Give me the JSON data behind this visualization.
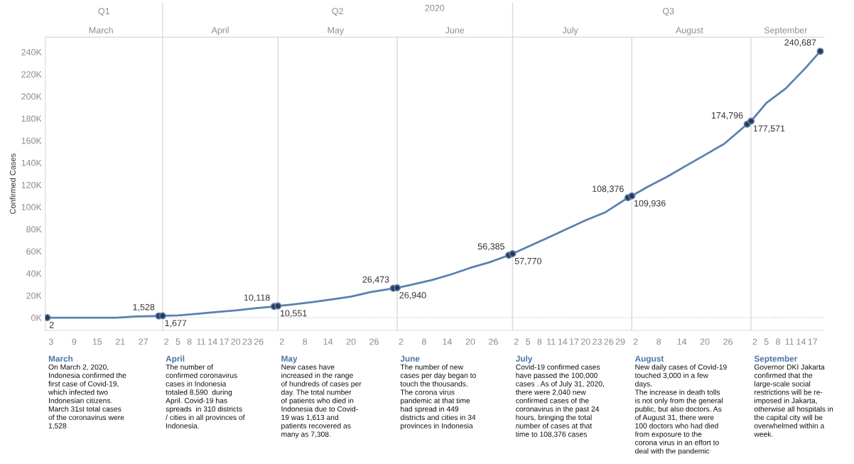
{
  "chart_data": {
    "type": "line",
    "ylabel": "Confirmed Cases",
    "x2label": "2020",
    "x2lim": [
      "2020-03-01T12:00",
      "2020-09-20"
    ],
    "xlim": [
      "2020-03-01T12:00",
      "2020-09-20"
    ],
    "ylim": [
      -11500,
      253500
    ],
    "yticks": [
      {
        "value": 0,
        "label": "0K"
      },
      {
        "value": 20000,
        "label": "20K"
      },
      {
        "value": 40000,
        "label": "40K"
      },
      {
        "value": 60000,
        "label": "60K"
      },
      {
        "value": 80000,
        "label": "80K"
      },
      {
        "value": 100000,
        "label": "100K"
      },
      {
        "value": 120000,
        "label": "120K"
      },
      {
        "value": 140000,
        "label": "140K"
      },
      {
        "value": 160000,
        "label": "160K"
      },
      {
        "value": 180000,
        "label": "180K"
      },
      {
        "value": 200000,
        "label": "200K"
      },
      {
        "value": 220000,
        "label": "220K"
      },
      {
        "value": 240000,
        "label": "240K"
      }
    ],
    "xticks": [
      {
        "value": "2020-03-03",
        "label": "3"
      },
      {
        "value": "2020-03-09",
        "label": "9"
      },
      {
        "value": "2020-03-15",
        "label": "15"
      },
      {
        "value": "2020-03-21",
        "label": "21"
      },
      {
        "value": "2020-03-27",
        "label": "27"
      },
      {
        "value": "2020-04-02",
        "label": "2"
      },
      {
        "value": "2020-04-05",
        "label": "5"
      },
      {
        "value": "2020-04-08",
        "label": "8"
      },
      {
        "value": "2020-04-11",
        "label": "11"
      },
      {
        "value": "2020-04-14",
        "label": "14"
      },
      {
        "value": "2020-04-17",
        "label": "17"
      },
      {
        "value": "2020-04-20",
        "label": "20"
      },
      {
        "value": "2020-04-23",
        "label": "23"
      },
      {
        "value": "2020-04-26",
        "label": "26"
      },
      {
        "value": "2020-05-02",
        "label": "2"
      },
      {
        "value": "2020-05-08",
        "label": "8"
      },
      {
        "value": "2020-05-14",
        "label": "14"
      },
      {
        "value": "2020-05-20",
        "label": "20"
      },
      {
        "value": "2020-05-26",
        "label": "26"
      },
      {
        "value": "2020-06-02",
        "label": "2"
      },
      {
        "value": "2020-06-08",
        "label": "8"
      },
      {
        "value": "2020-06-14",
        "label": "14"
      },
      {
        "value": "2020-06-20",
        "label": "20"
      },
      {
        "value": "2020-06-26",
        "label": "26"
      },
      {
        "value": "2020-07-02",
        "label": "2"
      },
      {
        "value": "2020-07-05",
        "label": "5"
      },
      {
        "value": "2020-07-08",
        "label": "8"
      },
      {
        "value": "2020-07-11",
        "label": "11"
      },
      {
        "value": "2020-07-14",
        "label": "14"
      },
      {
        "value": "2020-07-17",
        "label": "17"
      },
      {
        "value": "2020-07-20",
        "label": "20"
      },
      {
        "value": "2020-07-23",
        "label": "23"
      },
      {
        "value": "2020-07-26",
        "label": "26"
      },
      {
        "value": "2020-07-29",
        "label": "29"
      },
      {
        "value": "2020-08-02",
        "label": "2"
      },
      {
        "value": "2020-08-08",
        "label": "8"
      },
      {
        "value": "2020-08-14",
        "label": "14"
      },
      {
        "value": "2020-08-20",
        "label": "20"
      },
      {
        "value": "2020-08-26",
        "label": "26"
      },
      {
        "value": "2020-09-02",
        "label": "2"
      },
      {
        "value": "2020-09-05",
        "label": "5"
      },
      {
        "value": "2020-09-08",
        "label": "8"
      },
      {
        "value": "2020-09-11",
        "label": "11"
      },
      {
        "value": "2020-09-14",
        "label": "14"
      },
      {
        "value": "2020-09-17",
        "label": "17"
      }
    ],
    "x2ticks": [
      {
        "value": "2020-03-16",
        "label": "March"
      },
      {
        "value": "2020-04-16",
        "label": "April"
      },
      {
        "value": "2020-05-16",
        "label": "May"
      },
      {
        "value": "2020-06-16",
        "label": "June"
      },
      {
        "value": "2020-07-16",
        "label": "July"
      },
      {
        "value": "2020-08-16",
        "label": "August"
      },
      {
        "value": "2020-09-10",
        "label": "September"
      }
    ],
    "ref_lines": [
      {
        "axis": "x",
        "value": "2020-04-01",
        "label": null,
        "color": "#d9d9d9",
        "line_style": "solid"
      },
      {
        "axis": "x",
        "value": "2020-05-01",
        "label": null,
        "color": "#d9d9d9",
        "line_style": "solid"
      },
      {
        "axis": "x",
        "value": "2020-06-01",
        "label": null,
        "color": "#d9d9d9",
        "line_style": "solid"
      },
      {
        "axis": "x",
        "value": "2020-07-01",
        "label": null,
        "color": "#d9d9d9",
        "line_style": "solid"
      },
      {
        "axis": "x",
        "value": "2020-08-01",
        "label": null,
        "color": "#d9d9d9",
        "line_style": "solid"
      },
      {
        "axis": "x",
        "value": "2020-09-01",
        "label": null,
        "color": "#d9d9d9",
        "line_style": "solid"
      },
      {
        "axis": "y",
        "value": 0,
        "label": null,
        "color": "#d0d0d0",
        "line_style": "dotted"
      }
    ],
    "grid": false,
    "series": [
      {
        "color": "#5b80b2",
        "line_style": "solid",
        "marker": "none",
        "x": [
          "2020-03-02",
          "2020-03-10",
          "2020-03-15",
          "2020-03-20",
          "2020-03-25",
          "2020-03-31",
          "2020-04-01",
          "2020-04-05",
          "2020-04-10",
          "2020-04-15",
          "2020-04-20",
          "2020-04-25",
          "2020-04-30",
          "2020-05-01",
          "2020-05-05",
          "2020-05-10",
          "2020-05-15",
          "2020-05-20",
          "2020-05-25",
          "2020-05-31",
          "2020-06-01",
          "2020-06-05",
          "2020-06-10",
          "2020-06-15",
          "2020-06-20",
          "2020-06-25",
          "2020-06-30",
          "2020-07-01",
          "2020-07-05",
          "2020-07-10",
          "2020-07-15",
          "2020-07-20",
          "2020-07-25",
          "2020-07-31",
          "2020-08-01",
          "2020-08-05",
          "2020-08-10",
          "2020-08-15",
          "2020-08-20",
          "2020-08-25",
          "2020-08-31",
          "2020-09-01",
          "2020-09-05",
          "2020-09-10",
          "2020-09-15",
          "2020-09-19"
        ],
        "values": [
          2,
          0,
          0,
          0,
          1000,
          1528,
          1677,
          2000,
          3500,
          5000,
          6500,
          8500,
          10118,
          10551,
          12000,
          14000,
          16500,
          19000,
          23000,
          26473,
          26940,
          30000,
          34000,
          39000,
          45000,
          50000,
          56385,
          57770,
          64000,
          72000,
          80000,
          88000,
          95000,
          108376,
          109936,
          118000,
          127000,
          137000,
          147000,
          157000,
          174796,
          177571,
          194000,
          207000,
          225000,
          240687
        ]
      },
      {
        "type": "scatter",
        "color": "#2b3a52",
        "marker": "circle",
        "x": [
          "2020-03-02",
          "2020-03-31",
          "2020-04-01",
          "2020-04-30",
          "2020-05-01",
          "2020-05-31",
          "2020-06-01",
          "2020-06-30",
          "2020-07-01",
          "2020-07-31",
          "2020-08-01",
          "2020-08-31",
          "2020-09-01",
          "2020-09-19"
        ],
        "values": [
          2,
          1528,
          1677,
          10118,
          10551,
          26473,
          26940,
          56385,
          57770,
          108376,
          109936,
          174796,
          177571,
          240687
        ],
        "value_labels": [
          "2",
          "1,528",
          "1,677",
          "10,118",
          "10,551",
          "26,473",
          "26,940",
          "56,385",
          "57,770",
          "108,376",
          "109,936",
          "174,796",
          "177,571",
          "240,687"
        ]
      }
    ],
    "annotations": [
      "Q1",
      "Q2",
      "Q3",
      "March",
      "On March 2, 2020,\nIndonesia confirmed the\nfirst case of Covid-19,\nwhich infected two\nIndonesian citizens.\nMarch 31st total cases\nof the coronavirus were\n1,528",
      "April",
      "The number of\nconfirmed coronavirus\ncases in Indonesia\ntotaled 8,590  during\nApril. Covid-19 has\nspreads  in 310 districts\n/ cities in all provinces of\nIndonesia.",
      "May",
      "New cases have\nincreased in the range\nof hundreds of cases per\nday. The total number\nof patients who died in\nIndonesia due to Covid-\n19 was 1,613 and\npatients recovered as\nmany as 7,308.",
      "June",
      "The number of new\ncases per day began to\ntouch the thousands.\nThe corona virus\npandemic at that time\nhad spread in 449\ndistricts and cities in 34\nprovinces in Indonesia",
      "July",
      "Covid-19 confirmed cases\nhave passed the 100,000\ncases . As of July 31, 2020,\nthere were 2,040 new\nconfirmed cases of the\ncoronavirus in the past 24\nhours, bringing the total\nnumber of cases at that\ntime to 108,376 cases",
      "August",
      "New daily cases of Covid-19\ntouched 3,000 in a few\ndays.\nThe increase in death tolls\nis not only from the general\npublic, but also doctors. As\nof August 31, there were\n100 doctors who had died\nfrom exposure to the\ncorona virus in an effort to\ndeal with the pandemic",
      "September",
      "Governor DKI Jakarta\nconfirmed that the\nlarge-scale social\nrestrictions will be re-\nimposed in Jakarta,\notherwise all hospitals in\nthe capital city will be\noverwhelmed within a\nweek."
    ]
  }
}
